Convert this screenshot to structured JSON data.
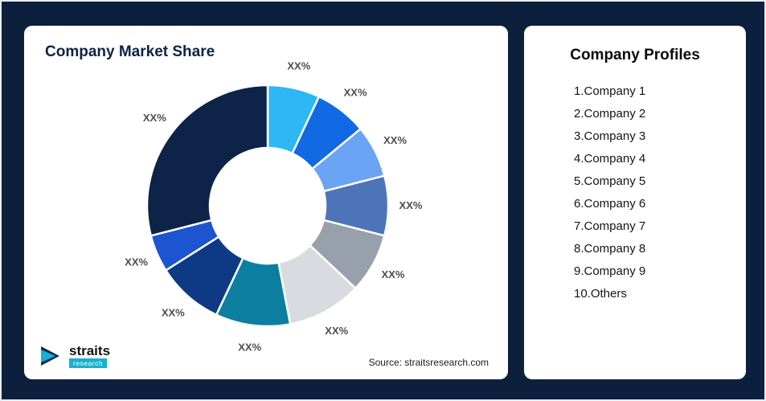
{
  "left_card": {
    "title": "Company Market Share",
    "source": "Source: straitsresearch.com",
    "logo": {
      "name": "straits",
      "sub": "research"
    }
  },
  "right_card": {
    "title": "Company Profiles",
    "items": [
      "1.Company 1",
      "2.Company 2",
      "3.Company 3",
      "4.Company 4",
      "5.Company 5",
      "6.Company 6",
      "7.Company 7",
      "8.Company 8",
      "9.Company 9",
      "10.Others"
    ]
  },
  "chart_data": {
    "type": "pie",
    "donut": true,
    "title": "Company Market Share",
    "legend_position": "none",
    "inner_radius_ratio": 0.48,
    "segments": [
      {
        "label": "XX%",
        "value": 7,
        "color": "#2db7f5"
      },
      {
        "label": "XX%",
        "value": 7,
        "color": "#1169e4"
      },
      {
        "label": "XX%",
        "value": 7,
        "color": "#6ba3f5"
      },
      {
        "label": "XX%",
        "value": 8,
        "color": "#4d74b8"
      },
      {
        "label": "XX%",
        "value": 8,
        "color": "#98a0ac"
      },
      {
        "label": "XX%",
        "value": 10,
        "color": "#d8dbdf"
      },
      {
        "label": "XX%",
        "value": 10,
        "color": "#0c7fa0"
      },
      {
        "label": "XX%",
        "value": 9,
        "color": "#0e3a85"
      },
      {
        "label": "XX%",
        "value": 5,
        "color": "#1d54cf"
      },
      {
        "label": "XX%",
        "value": 29,
        "color": "#0d2348"
      }
    ]
  }
}
